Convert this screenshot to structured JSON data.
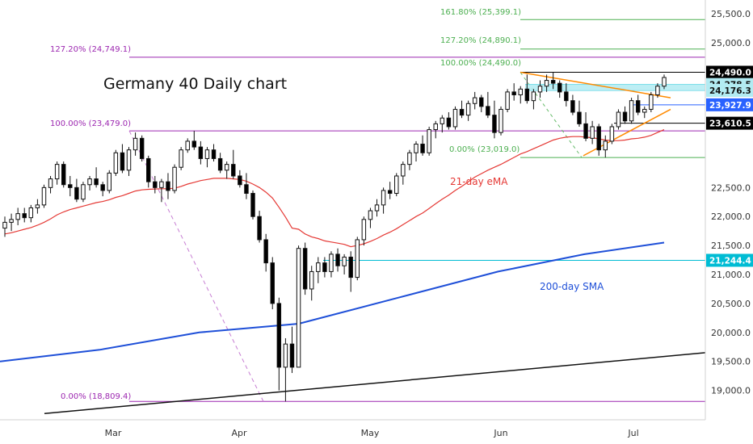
{
  "chart_data": {
    "type": "candlestick",
    "title": "Germany 40 Daily chart",
    "ylim": [
      18600,
      25700
    ],
    "x_ticks": [
      "Mar",
      "Apr",
      "May",
      "Jun",
      "Jul"
    ],
    "y_ticks": [
      "25,500.0",
      "25,000.0",
      "24,500.0",
      "22,500.0",
      "22,000.0",
      "21,500.0",
      "21,000.0",
      "20,500.0",
      "20,000.0",
      "19,500.0",
      "19,000.0"
    ],
    "y_tick_values": [
      25500,
      25000,
      24500,
      22500,
      22000,
      21500,
      21000,
      20500,
      20000,
      19500,
      19000
    ],
    "fib_labels": {
      "f1618": "161.80% (25,399.1)",
      "f1272": "127.20% (24,890.1)",
      "f100": "100.00% (24,490.0)",
      "f0": "0.00% (23,019.0)",
      "p1272": "127.20% (24,749.1)",
      "p100": "100.00% (23,479.0)",
      "p0": "0.00% (18,809.4)"
    },
    "fib_values": {
      "f1618": 25399.1,
      "f1272": 24890.1,
      "f100": 24490.0,
      "f0": 23019.0,
      "p1272": 24749.1,
      "p100": 23479.0,
      "p0": 18809.4
    },
    "level_tags": [
      {
        "label": "24,490.0",
        "value": 24490.0,
        "bg": "#000000",
        "fg": "#ffffff"
      },
      {
        "label": "24,278.5",
        "value": 24278.5,
        "bg": "#b2ebf2",
        "fg": "#111111"
      },
      {
        "label": "24,176.3",
        "value": 24176.3,
        "bg": "#b2ebf2",
        "fg": "#111111"
      },
      {
        "label": "23,927.9",
        "value": 23927.9,
        "bg": "#2962ff",
        "fg": "#ffffff"
      },
      {
        "label": "23,610.5",
        "value": 23610.5,
        "bg": "#000000",
        "fg": "#ffffff"
      },
      {
        "label": "21,244.4",
        "value": 21244.4,
        "bg": "#00bcd4",
        "fg": "#ffffff"
      }
    ],
    "ema_label": "21-day eMA",
    "sma_label": "200-day SMA",
    "colors": {
      "ema": "#e53935",
      "sma": "#1e4fd8",
      "fib_green": "#4caf50",
      "fib_purple": "#9c27b0",
      "trend_orange": "#ff8a00",
      "band": "#b2ebf2",
      "candle_up": "#ffffff",
      "candle_down": "#000000"
    },
    "candles": [
      [
        21800,
        22000,
        21650,
        21900
      ],
      [
        21900,
        22050,
        21750,
        21950
      ],
      [
        21950,
        22150,
        21850,
        22050
      ],
      [
        22050,
        22150,
        21900,
        21980
      ],
      [
        21980,
        22200,
        21900,
        22150
      ],
      [
        22150,
        22300,
        22050,
        22200
      ],
      [
        22200,
        22550,
        22150,
        22500
      ],
      [
        22500,
        22700,
        22400,
        22650
      ],
      [
        22650,
        22950,
        22550,
        22900
      ],
      [
        22900,
        22950,
        22500,
        22550
      ],
      [
        22550,
        22700,
        22350,
        22500
      ],
      [
        22500,
        22650,
        22250,
        22300
      ],
      [
        22300,
        22600,
        22250,
        22550
      ],
      [
        22550,
        22700,
        22450,
        22650
      ],
      [
        22650,
        22850,
        22500,
        22550
      ],
      [
        22550,
        22600,
        22350,
        22450
      ],
      [
        22450,
        22800,
        22400,
        22750
      ],
      [
        22750,
        23150,
        22700,
        23100
      ],
      [
        23100,
        23250,
        22750,
        22800
      ],
      [
        22800,
        23200,
        22700,
        23150
      ],
      [
        23150,
        23450,
        23050,
        23350
      ],
      [
        23350,
        23400,
        22950,
        23000
      ],
      [
        23000,
        23050,
        22500,
        22600
      ],
      [
        22600,
        22700,
        22400,
        22500
      ],
      [
        22500,
        22650,
        22250,
        22600
      ],
      [
        22600,
        22750,
        22300,
        22450
      ],
      [
        22450,
        22900,
        22400,
        22850
      ],
      [
        22850,
        23200,
        22800,
        23150
      ],
      [
        23150,
        23350,
        23100,
        23300
      ],
      [
        23300,
        23479,
        23150,
        23200
      ],
      [
        23200,
        23300,
        22900,
        23000
      ],
      [
        23000,
        23200,
        22850,
        23150
      ],
      [
        23150,
        23250,
        22950,
        23000
      ],
      [
        23000,
        23100,
        22750,
        22800
      ],
      [
        22800,
        22950,
        22650,
        22900
      ],
      [
        22900,
        23150,
        22650,
        22700
      ],
      [
        22700,
        22800,
        22500,
        22550
      ],
      [
        22550,
        22750,
        22300,
        22400
      ],
      [
        22400,
        22450,
        21950,
        22000
      ],
      [
        22000,
        22100,
        21550,
        21600
      ],
      [
        21600,
        21700,
        21050,
        21200
      ],
      [
        21200,
        21300,
        20400,
        20500
      ],
      [
        20500,
        20600,
        19000,
        19400
      ],
      [
        19400,
        19900,
        18809,
        19800
      ],
      [
        19800,
        20100,
        19300,
        19400
      ],
      [
        19400,
        21500,
        19400,
        21450
      ],
      [
        21450,
        21550,
        20650,
        20750
      ],
      [
        20750,
        21150,
        20550,
        21050
      ],
      [
        21050,
        21300,
        20850,
        21200
      ],
      [
        21200,
        21300,
        20950,
        21050
      ],
      [
        21050,
        21400,
        20950,
        21350
      ],
      [
        21350,
        21450,
        21050,
        21150
      ],
      [
        21150,
        21350,
        21000,
        21300
      ],
      [
        21300,
        21400,
        20700,
        20950
      ],
      [
        20950,
        21650,
        20900,
        21600
      ],
      [
        21600,
        22000,
        21500,
        21950
      ],
      [
        21950,
        22150,
        21800,
        22100
      ],
      [
        22100,
        22300,
        22000,
        22200
      ],
      [
        22200,
        22500,
        22050,
        22450
      ],
      [
        22450,
        22600,
        22300,
        22400
      ],
      [
        22400,
        22750,
        22350,
        22700
      ],
      [
        22700,
        22950,
        22550,
        22900
      ],
      [
        22900,
        23150,
        22800,
        23100
      ],
      [
        23100,
        23300,
        22950,
        23250
      ],
      [
        23250,
        23400,
        23050,
        23100
      ],
      [
        23100,
        23550,
        23050,
        23500
      ],
      [
        23500,
        23650,
        23350,
        23600
      ],
      [
        23600,
        23750,
        23450,
        23700
      ],
      [
        23700,
        23800,
        23500,
        23550
      ],
      [
        23550,
        23900,
        23500,
        23850
      ],
      [
        23850,
        24000,
        23700,
        23750
      ],
      [
        23750,
        24000,
        23650,
        23950
      ],
      [
        23950,
        24150,
        23850,
        24050
      ],
      [
        24050,
        24100,
        23800,
        23900
      ],
      [
        23900,
        24150,
        23700,
        23750
      ],
      [
        23750,
        24000,
        23350,
        23450
      ],
      [
        23450,
        23900,
        23400,
        23850
      ],
      [
        23850,
        24200,
        23800,
        24150
      ],
      [
        24150,
        24300,
        24000,
        24100
      ],
      [
        24100,
        24250,
        23950,
        24200
      ],
      [
        24200,
        24450,
        23950,
        24000
      ],
      [
        24000,
        24200,
        23850,
        24150
      ],
      [
        24150,
        24350,
        24050,
        24250
      ],
      [
        24250,
        24450,
        24150,
        24350
      ],
      [
        24350,
        24490,
        24200,
        24300
      ],
      [
        24300,
        24350,
        24050,
        24150
      ],
      [
        24150,
        24300,
        23900,
        24000
      ],
      [
        24000,
        24100,
        23750,
        23800
      ],
      [
        23800,
        24000,
        23550,
        23600
      ],
      [
        23600,
        23800,
        23300,
        23350
      ],
      [
        23350,
        23650,
        23250,
        23550
      ],
      [
        23550,
        23600,
        23050,
        23150
      ],
      [
        23150,
        23400,
        23019,
        23300
      ],
      [
        23300,
        23600,
        23250,
        23550
      ],
      [
        23550,
        23850,
        23500,
        23800
      ],
      [
        23800,
        23900,
        23600,
        23650
      ],
      [
        23650,
        24050,
        23600,
        24000
      ],
      [
        24000,
        24100,
        23750,
        23800
      ],
      [
        23800,
        23900,
        23700,
        23850
      ],
      [
        23850,
        24150,
        23800,
        24100
      ],
      [
        24100,
        24300,
        24050,
        24250
      ],
      [
        24250,
        24450,
        24200,
        24400
      ]
    ],
    "ema": [
      21700,
      21720,
      21750,
      21780,
      21810,
      21850,
      21900,
      21960,
      22030,
      22080,
      22120,
      22150,
      22180,
      22210,
      22240,
      22260,
      22290,
      22330,
      22360,
      22400,
      22440,
      22460,
      22470,
      22475,
      22480,
      22480,
      22490,
      22520,
      22560,
      22590,
      22620,
      22640,
      22660,
      22660,
      22660,
      22650,
      22640,
      22610,
      22560,
      22500,
      22420,
      22320,
      22160,
      21990,
      21800,
      21780,
      21700,
      21650,
      21620,
      21580,
      21560,
      21540,
      21520,
      21480,
      21500,
      21530,
      21570,
      21620,
      21680,
      21730,
      21790,
      21860,
      21930,
      22000,
      22060,
      22140,
      22220,
      22300,
      22370,
      22450,
      22520,
      22600,
      22680,
      22740,
      22800,
      22850,
      22900,
      22960,
      23020,
      23080,
      23120,
      23170,
      23220,
      23270,
      23320,
      23350,
      23370,
      23380,
      23380,
      23370,
      23360,
      23340,
      23320,
      23310,
      23310,
      23320,
      23340,
      23350,
      23370,
      23400,
      23450,
      23500
    ],
    "sma_points": [
      [
        0,
        19500
      ],
      [
        0.15,
        19700
      ],
      [
        0.3,
        20000
      ],
      [
        0.45,
        20150
      ],
      [
        0.6,
        20600
      ],
      [
        0.75,
        21050
      ],
      [
        0.88,
        21350
      ],
      [
        1.0,
        21550
      ]
    ],
    "support_line": [
      [
        0,
        18600
      ],
      [
        1.0,
        19650
      ]
    ]
  }
}
